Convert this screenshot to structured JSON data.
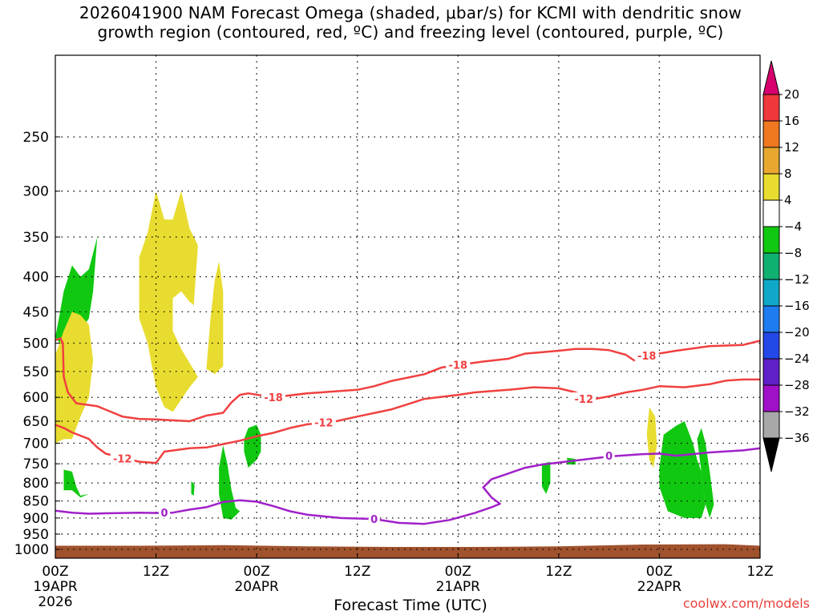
{
  "chart_data": {
    "type": "time-height cross-section",
    "title_line1": "2026041900 NAM Forecast Omega (shaded, μbar/s) for KCMI with dendritic snow",
    "title_line2": "growth region (contoured, red, ºC) and freezing level (contoured, purple, ºC)",
    "xlabel": "Forecast Time (UTC)",
    "credit": "coolwx.com/models",
    "x_range_hours": [
      0,
      84
    ],
    "y_scale": "log",
    "y_range_hpa": [
      1030,
      190
    ],
    "y_ticks": [
      250,
      300,
      350,
      400,
      450,
      500,
      550,
      600,
      650,
      700,
      750,
      800,
      850,
      900,
      950,
      1000
    ],
    "x_ticks": [
      {
        "h": 0,
        "label": "00Z",
        "sub1": "19APR",
        "sub2": "2026"
      },
      {
        "h": 12,
        "label": "12Z",
        "sub1": "",
        "sub2": ""
      },
      {
        "h": 24,
        "label": "00Z",
        "sub1": "20APR",
        "sub2": ""
      },
      {
        "h": 36,
        "label": "12Z",
        "sub1": "",
        "sub2": ""
      },
      {
        "h": 48,
        "label": "00Z",
        "sub1": "21APR",
        "sub2": ""
      },
      {
        "h": 60,
        "label": "12Z",
        "sub1": "",
        "sub2": ""
      },
      {
        "h": 72,
        "label": "00Z",
        "sub1": "22APR",
        "sub2": ""
      },
      {
        "h": 84,
        "label": "12Z",
        "sub1": "",
        "sub2": ""
      }
    ],
    "colorbar": {
      "labels": [
        "20",
        "16",
        "12",
        "8",
        "4",
        "−4",
        "−8",
        "−12",
        "−16",
        "−20",
        "−24",
        "−28",
        "−32",
        "−36"
      ],
      "colors": [
        "#d8006e",
        "#f0383c",
        "#f07820",
        "#e8a830",
        "#e8dc30",
        "#ffffff",
        "#10c810",
        "#10b070",
        "#10a8c8",
        "#1e7cf0",
        "#2448e8",
        "#6020c8",
        "#a010c8",
        "#a8a8a8",
        "#000000"
      ]
    },
    "colors": {
      "dgz_contour": "#f04040",
      "freezing_level": "#a020c8",
      "ground": "#a0522d",
      "omega_positive": "#e8dc30",
      "omega_negative": "#10c810"
    },
    "contours": {
      "minus18": {
        "label": "-18",
        "points": [
          [
            0,
            495
          ],
          [
            0.6,
            492
          ],
          [
            0.9,
            500
          ],
          [
            1.0,
            560
          ],
          [
            1.5,
            590
          ],
          [
            2.5,
            612
          ],
          [
            5,
            618
          ],
          [
            8,
            640
          ],
          [
            10,
            645
          ],
          [
            12,
            646
          ],
          [
            16,
            650
          ],
          [
            18,
            638
          ],
          [
            20,
            632
          ],
          [
            21,
            610
          ],
          [
            22,
            595
          ],
          [
            23,
            592
          ],
          [
            26,
            600
          ],
          [
            30,
            592
          ],
          [
            36,
            585
          ],
          [
            38,
            578
          ],
          [
            40,
            568
          ],
          [
            44,
            555
          ],
          [
            46,
            543
          ],
          [
            48,
            538
          ],
          [
            51,
            532
          ],
          [
            54,
            527
          ],
          [
            56,
            518
          ],
          [
            60,
            513
          ],
          [
            62,
            510
          ],
          [
            64,
            510
          ],
          [
            66,
            512
          ],
          [
            68,
            520
          ],
          [
            69,
            530
          ],
          [
            71,
            520
          ],
          [
            74,
            513
          ],
          [
            78,
            505
          ],
          [
            80,
            504
          ],
          [
            82,
            503
          ],
          [
            84,
            496
          ]
        ],
        "label_at": [
          [
            26,
            600
          ],
          [
            48,
            538
          ],
          [
            70.5,
            521
          ]
        ]
      },
      "minus12": {
        "label": "-12",
        "points": [
          [
            0,
            658
          ],
          [
            1,
            665
          ],
          [
            2,
            675
          ],
          [
            4,
            690
          ],
          [
            5,
            710
          ],
          [
            6,
            725
          ],
          [
            8,
            735
          ],
          [
            10,
            745
          ],
          [
            12,
            748
          ],
          [
            13,
            720
          ],
          [
            16,
            712
          ],
          [
            18,
            710
          ],
          [
            20,
            702
          ],
          [
            22,
            694
          ],
          [
            24,
            684
          ],
          [
            26,
            676
          ],
          [
            28,
            665
          ],
          [
            30,
            657
          ],
          [
            33,
            652
          ],
          [
            36,
            640
          ],
          [
            40,
            625
          ],
          [
            42,
            614
          ],
          [
            44,
            603
          ],
          [
            48,
            595
          ],
          [
            50,
            590
          ],
          [
            54,
            585
          ],
          [
            57,
            580
          ],
          [
            60,
            582
          ],
          [
            62,
            590
          ],
          [
            64,
            604
          ],
          [
            66,
            598
          ],
          [
            68,
            590
          ],
          [
            70,
            585
          ],
          [
            72,
            578
          ],
          [
            75,
            580
          ],
          [
            78,
            574
          ],
          [
            80,
            567
          ],
          [
            82,
            565
          ],
          [
            84,
            565
          ]
        ],
        "label_at": [
          [
            8,
            737
          ],
          [
            32,
            653
          ],
          [
            63,
            603
          ]
        ]
      },
      "zero": {
        "label": "0",
        "points": [
          [
            0,
            878
          ],
          [
            2,
            884
          ],
          [
            4,
            887
          ],
          [
            6,
            886
          ],
          [
            10,
            884
          ],
          [
            12,
            885
          ],
          [
            14,
            884
          ],
          [
            16,
            875
          ],
          [
            18,
            868
          ],
          [
            20,
            853
          ],
          [
            22,
            848
          ],
          [
            24,
            852
          ],
          [
            26,
            865
          ],
          [
            28,
            880
          ],
          [
            30,
            890
          ],
          [
            34,
            900
          ],
          [
            38,
            903
          ],
          [
            41,
            915
          ],
          [
            44,
            918
          ],
          [
            47,
            906
          ],
          [
            50,
            885
          ],
          [
            52,
            868
          ],
          [
            53,
            858
          ],
          [
            52,
            840
          ],
          [
            51,
            812
          ],
          [
            52,
            790
          ],
          [
            54,
            775
          ],
          [
            56,
            760
          ],
          [
            58,
            752
          ],
          [
            62,
            742
          ],
          [
            66,
            732
          ],
          [
            70,
            726
          ],
          [
            72,
            725
          ],
          [
            74,
            730
          ],
          [
            78,
            722
          ],
          [
            82,
            717
          ],
          [
            84,
            712
          ]
        ],
        "label_at": [
          [
            13,
            884
          ],
          [
            38,
            903
          ],
          [
            66,
            730
          ]
        ]
      }
    },
    "omega_shaded_regions": [
      {
        "sign": "negative",
        "points": [
          [
            0,
            490
          ],
          [
            0.5,
            455
          ],
          [
            1,
            420
          ],
          [
            2,
            385
          ],
          [
            3,
            400
          ],
          [
            4,
            390
          ],
          [
            5,
            350
          ],
          [
            4.5,
            420
          ],
          [
            4,
            460
          ],
          [
            3,
            480
          ],
          [
            2,
            515
          ],
          [
            1,
            510
          ]
        ]
      },
      {
        "sign": "positive",
        "points": [
          [
            0,
            520
          ],
          [
            1,
            480
          ],
          [
            2,
            450
          ],
          [
            3,
            455
          ],
          [
            4,
            470
          ],
          [
            4.5,
            530
          ],
          [
            4,
            600
          ],
          [
            3,
            640
          ],
          [
            2,
            690
          ],
          [
            1,
            690
          ],
          [
            0,
            700
          ]
        ]
      },
      {
        "sign": "negative",
        "points": [
          [
            1,
            765
          ],
          [
            2,
            770
          ],
          [
            2.5,
            810
          ],
          [
            3,
            835
          ],
          [
            4,
            830
          ],
          [
            3,
            840
          ],
          [
            2,
            820
          ],
          [
            1,
            820
          ]
        ]
      },
      {
        "sign": "positive",
        "points": [
          [
            10,
            375
          ],
          [
            11,
            345
          ],
          [
            12,
            300
          ],
          [
            13,
            330
          ],
          [
            14,
            330
          ],
          [
            15,
            300
          ],
          [
            16,
            340
          ],
          [
            17,
            360
          ],
          [
            16.5,
            440
          ],
          [
            16,
            435
          ],
          [
            15,
            420
          ],
          [
            14,
            430
          ],
          [
            14,
            480
          ],
          [
            15,
            510
          ],
          [
            17,
            560
          ],
          [
            16,
            580
          ],
          [
            14,
            630
          ],
          [
            13,
            620
          ],
          [
            12,
            580
          ],
          [
            11,
            500
          ],
          [
            10,
            460
          ]
        ]
      },
      {
        "sign": "positive",
        "points": [
          [
            19,
            405
          ],
          [
            19.5,
            380
          ],
          [
            20,
            420
          ],
          [
            20,
            540
          ],
          [
            19,
            555
          ],
          [
            18,
            545
          ],
          [
            18.5,
            460
          ]
        ]
      },
      {
        "sign": "negative",
        "points": [
          [
            20,
            705
          ],
          [
            20.5,
            750
          ],
          [
            21,
            820
          ],
          [
            21.5,
            870
          ],
          [
            22,
            880
          ],
          [
            21,
            905
          ],
          [
            20,
            900
          ],
          [
            19.5,
            830
          ],
          [
            19.5,
            760
          ]
        ]
      },
      {
        "sign": "negative",
        "points": [
          [
            16.2,
            795
          ],
          [
            16.6,
            805
          ],
          [
            16.5,
            835
          ],
          [
            16.2,
            830
          ]
        ]
      },
      {
        "sign": "negative",
        "points": [
          [
            23,
            665
          ],
          [
            24,
            658
          ],
          [
            24.5,
            680
          ],
          [
            24.5,
            720
          ],
          [
            24,
            740
          ],
          [
            23,
            760
          ],
          [
            22.5,
            720
          ],
          [
            22.5,
            690
          ]
        ]
      },
      {
        "sign": "positive",
        "points": [
          [
            70.8,
            620
          ],
          [
            71.5,
            640
          ],
          [
            71.7,
            705
          ],
          [
            71.3,
            760
          ],
          [
            70.8,
            740
          ],
          [
            70.5,
            680
          ]
        ]
      },
      {
        "sign": "negative",
        "points": [
          [
            58,
            750
          ],
          [
            59,
            745
          ],
          [
            59,
            800
          ],
          [
            58.5,
            830
          ],
          [
            58,
            810
          ]
        ]
      },
      {
        "sign": "negative",
        "points": [
          [
            61,
            735
          ],
          [
            62,
            738
          ],
          [
            62,
            752
          ],
          [
            61,
            752
          ]
        ]
      },
      {
        "sign": "negative",
        "points": [
          [
            72.5,
            680
          ],
          [
            74,
            660
          ],
          [
            75,
            650
          ],
          [
            76,
            700
          ],
          [
            76.5,
            740
          ],
          [
            77,
            770
          ],
          [
            77.5,
            860
          ],
          [
            77,
            900
          ],
          [
            75,
            900
          ],
          [
            73,
            880
          ],
          [
            72,
            810
          ],
          [
            72,
            760
          ]
        ]
      },
      {
        "sign": "negative",
        "points": [
          [
            76.5,
            690
          ],
          [
            77,
            665
          ],
          [
            77.5,
            700
          ],
          [
            78,
            770
          ],
          [
            78.5,
            860
          ],
          [
            78,
            900
          ],
          [
            77.5,
            860
          ]
        ]
      }
    ],
    "ground_surface_hpa": [
      [
        0,
        988
      ],
      [
        10,
        988
      ],
      [
        20,
        986
      ],
      [
        30,
        990
      ],
      [
        40,
        992
      ],
      [
        50,
        992
      ],
      [
        60,
        990
      ],
      [
        70,
        984
      ],
      [
        80,
        983
      ],
      [
        84,
        988
      ]
    ]
  }
}
